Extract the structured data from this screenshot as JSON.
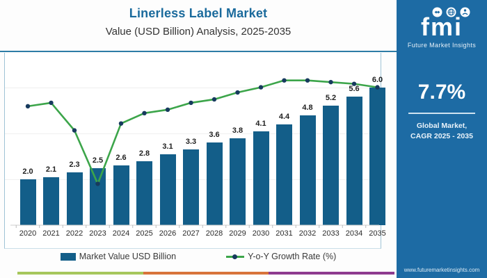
{
  "header": {
    "title": "Linerless Label Market",
    "subtitle": "Value (USD Billion) Analysis, 2025-2035"
  },
  "chart_data": {
    "type": "bar",
    "title": "Linerless Label Market",
    "subtitle": "Value (USD Billion) Analysis, 2025-2035",
    "categories": [
      "2020",
      "2021",
      "2022",
      "2023",
      "2024",
      "2025",
      "2026",
      "2027",
      "2028",
      "2029",
      "2030",
      "2031",
      "2032",
      "2033",
      "2034",
      "2035"
    ],
    "series": [
      {
        "name": "Market Value USD Billion",
        "type": "bar",
        "values": [
          2.0,
          2.1,
          2.3,
          2.5,
          2.6,
          2.8,
          3.1,
          3.3,
          3.6,
          3.8,
          4.1,
          4.4,
          4.8,
          5.2,
          5.6,
          6.0
        ],
        "color": "#135e89",
        "data_labels_shown": true
      },
      {
        "name": "Y-o-Y Growth Rate (%)",
        "type": "line",
        "note": "growth-rate values are not labeled on the chart; shape estimated as percent of plot height",
        "estimated_pct_of_plot_height": [
          69,
          71,
          55,
          24,
          59,
          65,
          67,
          71,
          73,
          77,
          80,
          84,
          84,
          83,
          82,
          80
        ],
        "color": "#3ca54a",
        "marker_color": "#173a5e"
      }
    ],
    "xlabel": "",
    "ylabel": "",
    "ylim": [
      0,
      7
    ],
    "grid": "faint horizontal gridlines at 2, 4, 6",
    "legend_position": "bottom"
  },
  "legend": {
    "bar_label": "Market Value USD Billion",
    "line_label": "Y-o-Y Growth Rate (%)"
  },
  "side_panel": {
    "logo_text": "fmi",
    "logo_subtext": "Future Market Insights",
    "cagr_value": "7.7%",
    "cagr_caption_line1": "Global Market,",
    "cagr_caption_line2": "CAGR 2025 - 2035",
    "website": "www.futuremarketinsights.com",
    "bg_color": "#1d6ba4"
  },
  "footer_strip_colors": [
    "#a6c75c",
    "#d8743b",
    "#8e3b8f"
  ]
}
